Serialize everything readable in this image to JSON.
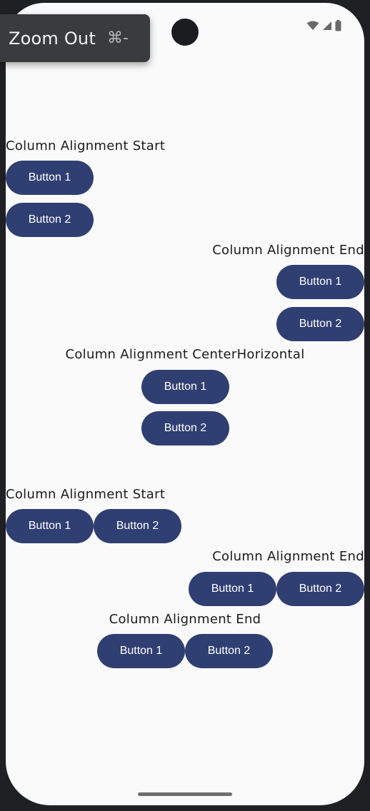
{
  "tooltip": {
    "label": "Zoom Out",
    "shortcut": "⌘-"
  },
  "status_bar": {
    "icons": [
      "wifi-icon",
      "signal-icon",
      "battery-icon"
    ]
  },
  "colors": {
    "button_bg": "#303f72",
    "button_text": "#ffffff",
    "background": "#fafafa"
  },
  "sections": [
    {
      "label": "Column Alignment Start",
      "buttons": [
        "Button 1",
        "Button 2"
      ]
    },
    {
      "label": "Column Alignment End",
      "buttons": [
        "Button 1",
        "Button 2"
      ]
    },
    {
      "label": "Column Alignment CenterHorizontal",
      "buttons": [
        "Button 1",
        "Button 2"
      ]
    },
    {
      "label": "Column Alignment Start",
      "buttons": [
        "Button 1",
        "Button 2"
      ]
    },
    {
      "label": "Column Alignment End",
      "buttons": [
        "Button 1",
        "Button 2"
      ]
    },
    {
      "label": "Column Alignment End",
      "buttons": [
        "Button 1",
        "Button 2"
      ]
    }
  ]
}
